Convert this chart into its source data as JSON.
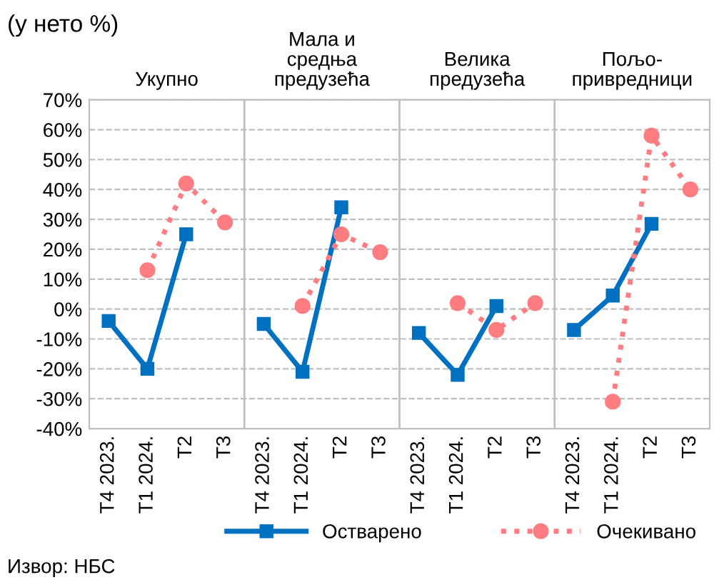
{
  "chart_data": {
    "type": "line",
    "subtitle": "(у нето %)",
    "categories": [
      "Т4 2023.",
      "Т1 2024.",
      "Т2",
      "Т3",
      "Т4 2023.",
      "Т1 2024.",
      "Т2",
      "Т3",
      "Т4 2023.",
      "Т1 2024.",
      "Т2",
      "Т3",
      "Т4 2023.",
      "Т1 2024.",
      "Т2",
      "Т3"
    ],
    "series": [
      {
        "name": "Остварено",
        "color": "#0070c0",
        "marker": "square",
        "line_style": "solid",
        "values": [
          -4,
          -20,
          25,
          null,
          -5,
          -21,
          34,
          null,
          -8,
          -22,
          1,
          null,
          -7,
          4.5,
          28.5,
          null
        ]
      },
      {
        "name": "Очекивано",
        "color": "#ff7c80",
        "marker": "circle",
        "line_style": "dotted",
        "values": [
          null,
          13,
          42,
          29,
          null,
          1,
          25,
          19,
          null,
          2,
          -7,
          2,
          null,
          -31,
          58,
          40
        ]
      }
    ],
    "ylim": [
      -40,
      70
    ],
    "yticks": [
      {
        "value": -40,
        "label": "-40%"
      },
      {
        "value": -30,
        "label": "-30%"
      },
      {
        "value": -20,
        "label": "-20%"
      },
      {
        "value": -10,
        "label": "-10%"
      },
      {
        "value": 0,
        "label": "0%"
      },
      {
        "value": 10,
        "label": "10%"
      },
      {
        "value": 20,
        "label": "20%"
      },
      {
        "value": 30,
        "label": "30%"
      },
      {
        "value": 40,
        "label": "40%"
      },
      {
        "value": 50,
        "label": "50%"
      },
      {
        "value": 60,
        "label": "60%"
      },
      {
        "value": 70,
        "label": "70%"
      }
    ],
    "grid": "y",
    "legend": "bottom",
    "annotations": [
      "Укупно",
      "Мала и\nсредња\nпредузећа",
      "Велика\nпредузећа",
      "Пољо-\nпривредници",
      "Извор: НБС"
    ]
  }
}
